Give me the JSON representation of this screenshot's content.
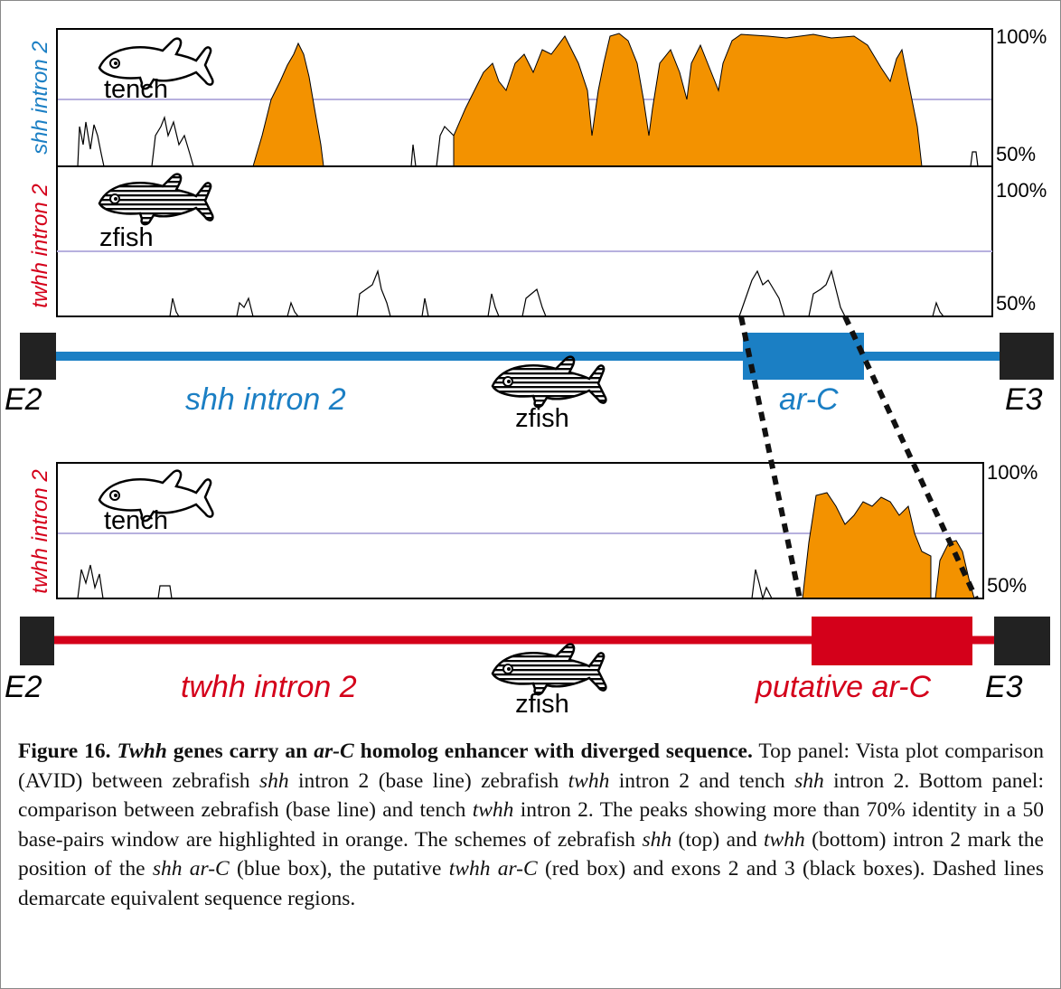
{
  "top_panel": {
    "tracks": [
      {
        "label": "shh intron 2",
        "species": "tench",
        "max_label": "100%",
        "min_label": "50%"
      },
      {
        "label": "twhh intron 2",
        "species": "zfish",
        "max_label": "100%",
        "min_label": "50%"
      }
    ],
    "scheme": {
      "left_exon": "E2",
      "intron": "shh intron 2",
      "species": "zfish",
      "element": "ar-C",
      "right_exon": "E3"
    }
  },
  "bottom_panel": {
    "tracks": [
      {
        "label": "twhh intron 2",
        "species": "tench",
        "max_label": "100%",
        "min_label": "50%"
      }
    ],
    "scheme": {
      "left_exon": "E2",
      "intron": "twhh intron 2",
      "species": "zfish",
      "element": "putative ar-C",
      "right_exon": "E3"
    }
  },
  "caption": {
    "runs": [
      "Figure 16. ",
      "Twhh",
      " genes carry an ",
      "ar-C",
      " homolog enhancer with diverged sequence.",
      " Top panel: Vista plot comparison (AVID) between zebrafish ",
      "shh",
      " intron 2 (base line) zebrafish ",
      "twhh",
      " intron 2 and tench ",
      "shh",
      " intron 2. Bottom panel: comparison between zebrafish (base line) and tench ",
      "twhh",
      " intron 2. The peaks showing more than 70% identity in a 50 base-pairs window are highlighted in orange. The schemes of zebrafish ",
      "shh",
      " (top) and ",
      "twhh",
      " (bottom) intron 2 mark the position of the ",
      "shh ar-C",
      " (blue box), the putative ",
      "twhh ar-C",
      " (red box) and exons 2 and 3 (black boxes). Dashed lines demarcate equivalent sequence regions."
    ]
  }
}
